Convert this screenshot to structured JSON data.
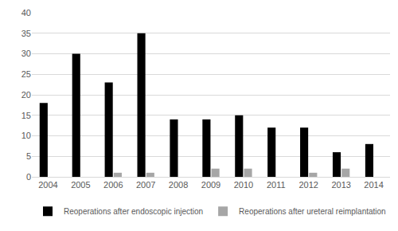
{
  "chart_data": {
    "type": "bar",
    "categories": [
      "2004",
      "2005",
      "2006",
      "2007",
      "2008",
      "2009",
      "2010",
      "2011",
      "2012",
      "2013",
      "2014"
    ],
    "series": [
      {
        "name": "Reoperations after endoscopic injection",
        "color": "#000000",
        "values": [
          18,
          30,
          23,
          35,
          14,
          14,
          15,
          12,
          12,
          6,
          8
        ]
      },
      {
        "name": "Reoperations after ureteral reimplantation",
        "color": "#a6a6a6",
        "values": [
          0,
          0,
          1,
          1,
          0,
          2,
          2,
          0,
          1,
          2,
          0
        ]
      }
    ],
    "ylim": [
      0,
      40
    ],
    "yticks": [
      0,
      5,
      10,
      15,
      20,
      25,
      30,
      35,
      40
    ],
    "grid": true,
    "legend": "bottom"
  }
}
